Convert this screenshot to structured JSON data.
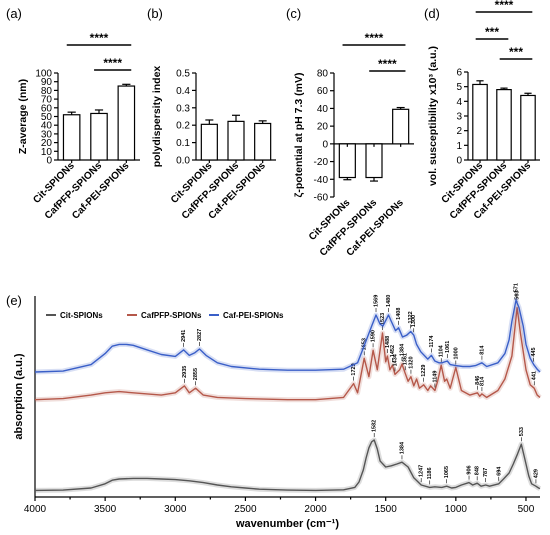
{
  "panel_labels": [
    "(a)",
    "(b)",
    "(c)",
    "(d)",
    "(e)"
  ],
  "chart_data": [
    {
      "type": "bar",
      "panel": "(a)",
      "categories": [
        "Cit-SPIONs",
        "CafPFP-SPIONs",
        "Caf-PEI-SPIONs"
      ],
      "values": [
        52,
        53.5,
        85
      ],
      "errors": [
        3,
        4,
        2
      ],
      "ylabel": "Z-average (nm)",
      "ylim": [
        0,
        100
      ],
      "yticks": [
        "0",
        "10",
        "20",
        "30",
        "40",
        "50",
        "60",
        "70",
        "80",
        "90",
        "100"
      ],
      "significance": [
        {
          "from": 0,
          "to": 2,
          "label": "****"
        },
        {
          "from": 1,
          "to": 2,
          "label": "****"
        }
      ]
    },
    {
      "type": "bar",
      "panel": "(b)",
      "categories": [
        "Cit-SPIONs",
        "CafPFP-SPIONs",
        "Caf-PEI-SPIONs"
      ],
      "values": [
        0.205,
        0.222,
        0.21
      ],
      "errors": [
        0.025,
        0.035,
        0.015
      ],
      "ylabel": "polydispersity index",
      "ylim": [
        0,
        0.5
      ],
      "yticks": [
        "0.0",
        "0.1",
        "0.2",
        "0.3",
        "0.4",
        "0.5"
      ],
      "significance": []
    },
    {
      "type": "bar",
      "panel": "(c)",
      "categories": [
        "Cit-SPIONs",
        "CafPFP-SPIONs",
        "Caf-PEI-SPIONs"
      ],
      "values": [
        -38,
        -38,
        39
      ],
      "errors": [
        2.5,
        4,
        2
      ],
      "ylabel": "ζ-potential at pH 7.3 (mV)",
      "ylim": [
        -60,
        80
      ],
      "yticks": [
        "-60",
        "-40",
        "-20",
        "0",
        "20",
        "40",
        "60",
        "80"
      ],
      "significance": [
        {
          "from": 0,
          "to": 2,
          "label": "****"
        },
        {
          "from": 1,
          "to": 2,
          "label": "****"
        }
      ]
    },
    {
      "type": "bar",
      "panel": "(d)",
      "categories": [
        "Cit-SPIONs",
        "CafPFP-SPIONs",
        "Caf-PEI-SPIONs"
      ],
      "values": [
        5.15,
        4.8,
        4.4
      ],
      "errors": [
        0.25,
        0.1,
        0.15
      ],
      "ylabel": "vol. susceptibility x10³ (a.u.)",
      "ylim": [
        0,
        6
      ],
      "yticks": [
        "0",
        "1",
        "2",
        "3",
        "4",
        "5",
        "6"
      ],
      "significance": [
        {
          "from": 0,
          "to": 2,
          "label": "****"
        },
        {
          "from": 0,
          "to": 1,
          "label": "***"
        },
        {
          "from": 1,
          "to": 2,
          "label": "***"
        }
      ]
    },
    {
      "type": "line",
      "panel": "(e)",
      "xlabel": "wavenumber (cm⁻¹)",
      "ylabel": "absorption (a.u.)",
      "xlim": [
        4000,
        400
      ],
      "xticks": [
        "4000",
        "3500",
        "3000",
        "2500",
        "2000",
        "1500",
        "1000",
        "500"
      ],
      "x_reversed": true,
      "legend_position": "top-left",
      "series": [
        {
          "name": "Cit-SPIONs",
          "color": "#555555",
          "x": [
            4000,
            3800,
            3600,
            3500,
            3450,
            3400,
            3300,
            3200,
            3100,
            3000,
            2900,
            2800,
            2700,
            2600,
            2500,
            2400,
            2200,
            2000,
            1800,
            1720,
            1690,
            1660,
            1640,
            1620,
            1600,
            1582,
            1560,
            1540,
            1500,
            1460,
            1420,
            1384,
            1340,
            1300,
            1247,
            1186,
            1150,
            1100,
            1065,
            1030,
            1000,
            960,
            906,
            880,
            848,
            820,
            787,
            760,
            694,
            660,
            620,
            590,
            560,
            533,
            510,
            480,
            460,
            429,
            410,
            400
          ],
          "y": [
            0.01,
            0.015,
            0.05,
            0.12,
            0.18,
            0.2,
            0.21,
            0.21,
            0.2,
            0.19,
            0.17,
            0.14,
            0.1,
            0.07,
            0.05,
            0.03,
            0.015,
            0.01,
            0.02,
            0.06,
            0.15,
            0.35,
            0.55,
            0.72,
            0.82,
            0.85,
            0.7,
            0.5,
            0.4,
            0.42,
            0.45,
            0.48,
            0.4,
            0.22,
            0.1,
            0.06,
            0.07,
            0.06,
            0.08,
            0.05,
            0.06,
            0.1,
            0.14,
            0.1,
            0.13,
            0.08,
            0.1,
            0.08,
            0.12,
            0.2,
            0.3,
            0.45,
            0.62,
            0.78,
            0.55,
            0.25,
            0.12,
            0.08,
            0.05,
            0.04
          ]
        },
        {
          "name": "CafPFP-SPIONs",
          "color": "#b5584a",
          "x": [
            4000,
            3800,
            3600,
            3500,
            3400,
            3300,
            3200,
            3100,
            3000,
            2935,
            2900,
            2855,
            2800,
            2700,
            2500,
            2200,
            2000,
            1800,
            1729,
            1700,
            1653,
            1620,
            1590,
            1560,
            1523,
            1500,
            1488,
            1470,
            1452,
            1434,
            1400,
            1384,
            1361,
            1340,
            1320,
            1300,
            1280,
            1260,
            1229,
            1200,
            1180,
            1149,
            1130,
            1104,
            1080,
            1065,
            1040,
            1000,
            960,
            900,
            846,
            830,
            814,
            780,
            700,
            650,
            600,
            563,
            540,
            500,
            470,
            441,
            420,
            400
          ],
          "y": [
            0.02,
            0.03,
            0.06,
            0.08,
            0.09,
            0.08,
            0.07,
            0.06,
            0.08,
            0.14,
            0.08,
            0.12,
            0.06,
            0.04,
            0.03,
            0.02,
            0.02,
            0.04,
            0.16,
            0.08,
            0.38,
            0.22,
            0.45,
            0.28,
            0.6,
            0.35,
            0.4,
            0.28,
            0.32,
            0.24,
            0.28,
            0.33,
            0.25,
            0.18,
            0.22,
            0.14,
            0.2,
            0.12,
            0.15,
            0.1,
            0.14,
            0.1,
            0.18,
            0.32,
            0.18,
            0.2,
            0.12,
            0.3,
            0.1,
            0.06,
            0.08,
            0.05,
            0.07,
            0.04,
            0.1,
            0.2,
            0.4,
            0.82,
            0.6,
            0.28,
            0.15,
            0.12,
            0.06,
            0.04
          ]
        },
        {
          "name": "Caf-PEI-SPIONs",
          "color": "#3a5fc8",
          "x": [
            4000,
            3800,
            3600,
            3500,
            3450,
            3400,
            3350,
            3300,
            3200,
            3100,
            3000,
            2941,
            2900,
            2860,
            2827,
            2780,
            2700,
            2600,
            2400,
            2200,
            2000,
            1800,
            1700,
            1650,
            1600,
            1569,
            1540,
            1520,
            1500,
            1480,
            1460,
            1430,
            1408,
            1380,
            1350,
            1322,
            1300,
            1280,
            1250,
            1200,
            1174,
            1150,
            1120,
            1100,
            1061,
            1040,
            1000,
            950,
            900,
            860,
            814,
            780,
            700,
            650,
            620,
            600,
            571,
            550,
            520,
            500,
            470,
            445,
            420,
            400
          ],
          "y": [
            0.0,
            0.01,
            0.08,
            0.2,
            0.28,
            0.3,
            0.3,
            0.29,
            0.24,
            0.19,
            0.17,
            0.24,
            0.18,
            0.21,
            0.25,
            0.18,
            0.1,
            0.06,
            0.03,
            0.02,
            0.02,
            0.03,
            0.1,
            0.3,
            0.5,
            0.62,
            0.52,
            0.5,
            0.56,
            0.62,
            0.55,
            0.45,
            0.48,
            0.38,
            0.4,
            0.44,
            0.4,
            0.3,
            0.22,
            0.14,
            0.18,
            0.12,
            0.1,
            0.1,
            0.12,
            0.08,
            0.07,
            0.06,
            0.06,
            0.07,
            0.1,
            0.06,
            0.1,
            0.2,
            0.35,
            0.55,
            0.78,
            0.7,
            0.5,
            0.3,
            0.15,
            0.08,
            0.03,
            0.0
          ]
        }
      ],
      "annotations": [
        {
          "series": 0,
          "labels": [
            {
              "x": 1582,
              "text": "1582"
            },
            {
              "x": 1384,
              "text": "1384"
            },
            {
              "x": 1247,
              "text": "1247"
            },
            {
              "x": 1186,
              "text": "1186"
            },
            {
              "x": 1065,
              "text": "1065"
            },
            {
              "x": 906,
              "text": "906"
            },
            {
              "x": 848,
              "text": "848"
            },
            {
              "x": 787,
              "text": "787"
            },
            {
              "x": 694,
              "text": "694"
            },
            {
              "x": 533,
              "text": "533"
            },
            {
              "x": 429,
              "text": "429"
            }
          ]
        },
        {
          "series": 1,
          "labels": [
            {
              "x": 2935,
              "text": "2935"
            },
            {
              "x": 2855,
              "text": "2855"
            },
            {
              "x": 1729,
              "text": "1729"
            },
            {
              "x": 1653,
              "text": "1653"
            },
            {
              "x": 1590,
              "text": "1590"
            },
            {
              "x": 1523,
              "text": "1523"
            },
            {
              "x": 1488,
              "text": "1488"
            },
            {
              "x": 1452,
              "text": "1452"
            },
            {
              "x": 1434,
              "text": "1434"
            },
            {
              "x": 1384,
              "text": "1384"
            },
            {
              "x": 1361,
              "text": "1361"
            },
            {
              "x": 1320,
              "text": "1320"
            },
            {
              "x": 1229,
              "text": "1229"
            },
            {
              "x": 1149,
              "text": "1149"
            },
            {
              "x": 1104,
              "text": "1104"
            },
            {
              "x": 1000,
              "text": "1000"
            },
            {
              "x": 846,
              "text": "846"
            },
            {
              "x": 814,
              "text": "814"
            },
            {
              "x": 563,
              "text": "563"
            },
            {
              "x": 441,
              "text": "441"
            }
          ]
        },
        {
          "series": 2,
          "labels": [
            {
              "x": 2941,
              "text": "2941"
            },
            {
              "x": 2827,
              "text": "2827"
            },
            {
              "x": 1569,
              "text": "1569"
            },
            {
              "x": 1480,
              "text": "1480"
            },
            {
              "x": 1408,
              "text": "1408"
            },
            {
              "x": 1322,
              "text": "1322"
            },
            {
              "x": 1300,
              "text": "1300"
            },
            {
              "x": 1174,
              "text": "1174"
            },
            {
              "x": 1061,
              "text": "1061"
            },
            {
              "x": 814,
              "text": "814"
            },
            {
              "x": 571,
              "text": "571"
            },
            {
              "x": 445,
              "text": "445"
            }
          ]
        }
      ]
    }
  ]
}
